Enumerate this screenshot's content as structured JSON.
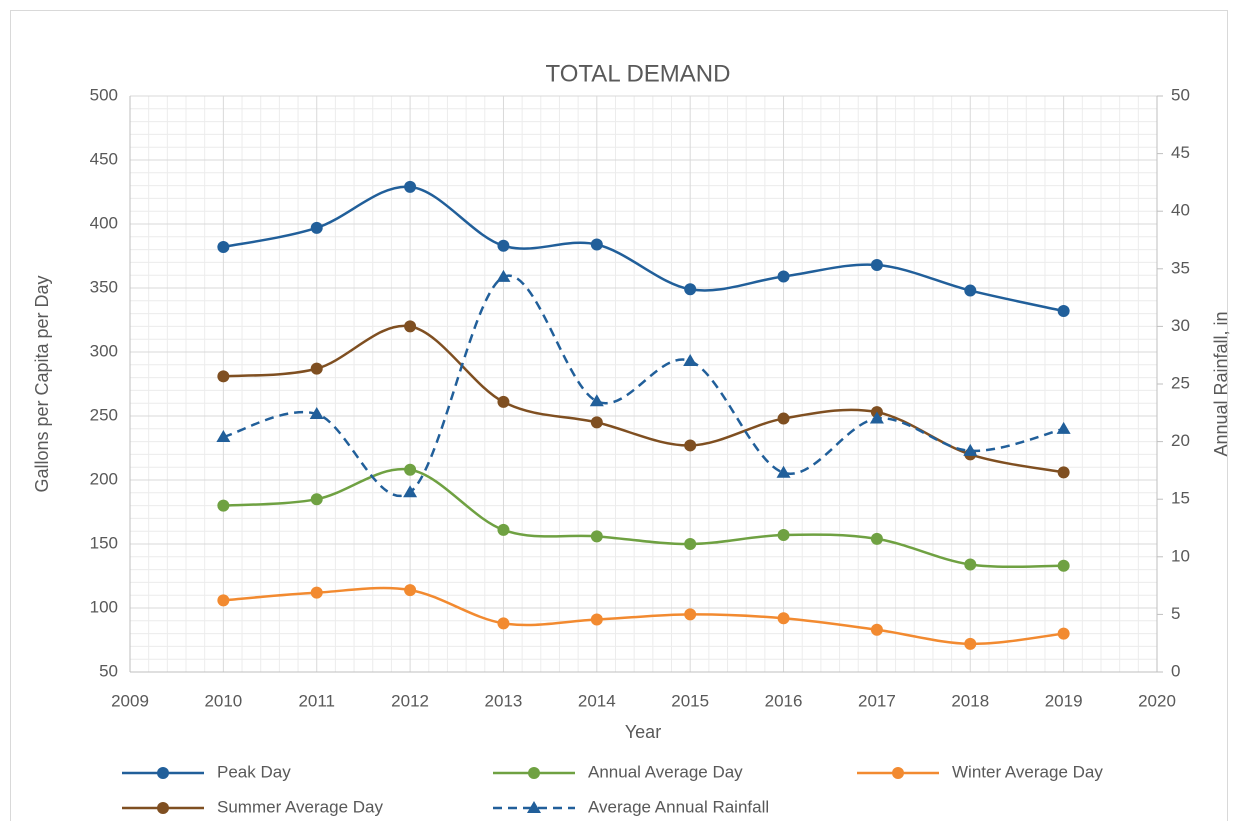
{
  "chart_data": {
    "type": "line",
    "title": "TOTAL DEMAND",
    "x_label": "Year",
    "y_label": "Gallons per Capita per Day",
    "y2_label": "Annual Rainfall, in",
    "x": [
      2010,
      2011,
      2012,
      2013,
      2014,
      2015,
      2016,
      2017,
      2018,
      2019
    ],
    "xlim": [
      2009,
      2020
    ],
    "xticks": [
      2009,
      2010,
      2011,
      2012,
      2013,
      2014,
      2015,
      2016,
      2017,
      2018,
      2019,
      2020
    ],
    "ylim": [
      50,
      500
    ],
    "yticks": [
      50,
      100,
      150,
      200,
      250,
      300,
      350,
      400,
      450,
      500
    ],
    "y2lim": [
      0,
      50
    ],
    "y2ticks": [
      0,
      5,
      10,
      15,
      20,
      25,
      30,
      35,
      40,
      45,
      50
    ],
    "grid": true,
    "minor_grid": true,
    "smooth": true,
    "legend": "bottom",
    "series": [
      {
        "name": "Peak Day",
        "color": "#215f9a",
        "marker": "circle",
        "dashed": false,
        "values": [
          382,
          397,
          429,
          383,
          384,
          349,
          359,
          368,
          348,
          332
        ]
      },
      {
        "name": "Annual Average Day",
        "color": "#6fa142",
        "marker": "circle",
        "dashed": false,
        "values": [
          180,
          185,
          208,
          161,
          156,
          150,
          157,
          154,
          134,
          133
        ]
      },
      {
        "name": "Winter Average Day",
        "color": "#f28a30",
        "marker": "circle",
        "dashed": false,
        "values": [
          106,
          112,
          114,
          88,
          91,
          95,
          92,
          83,
          72,
          80
        ]
      },
      {
        "name": "Summer Average Day",
        "color": "#7f4f21",
        "marker": "circle",
        "dashed": false,
        "values": [
          281,
          287,
          320,
          261,
          245,
          227,
          248,
          253,
          220,
          206
        ]
      },
      {
        "name": "Average Annual Rainfall",
        "color": "#215f9a",
        "marker": "triangle",
        "dashed": true,
        "axis": "y2",
        "values": [
          20.4,
          22.4,
          15.6,
          34.3,
          23.5,
          27.0,
          17.3,
          22.0,
          19.2,
          21.1
        ]
      }
    ]
  }
}
